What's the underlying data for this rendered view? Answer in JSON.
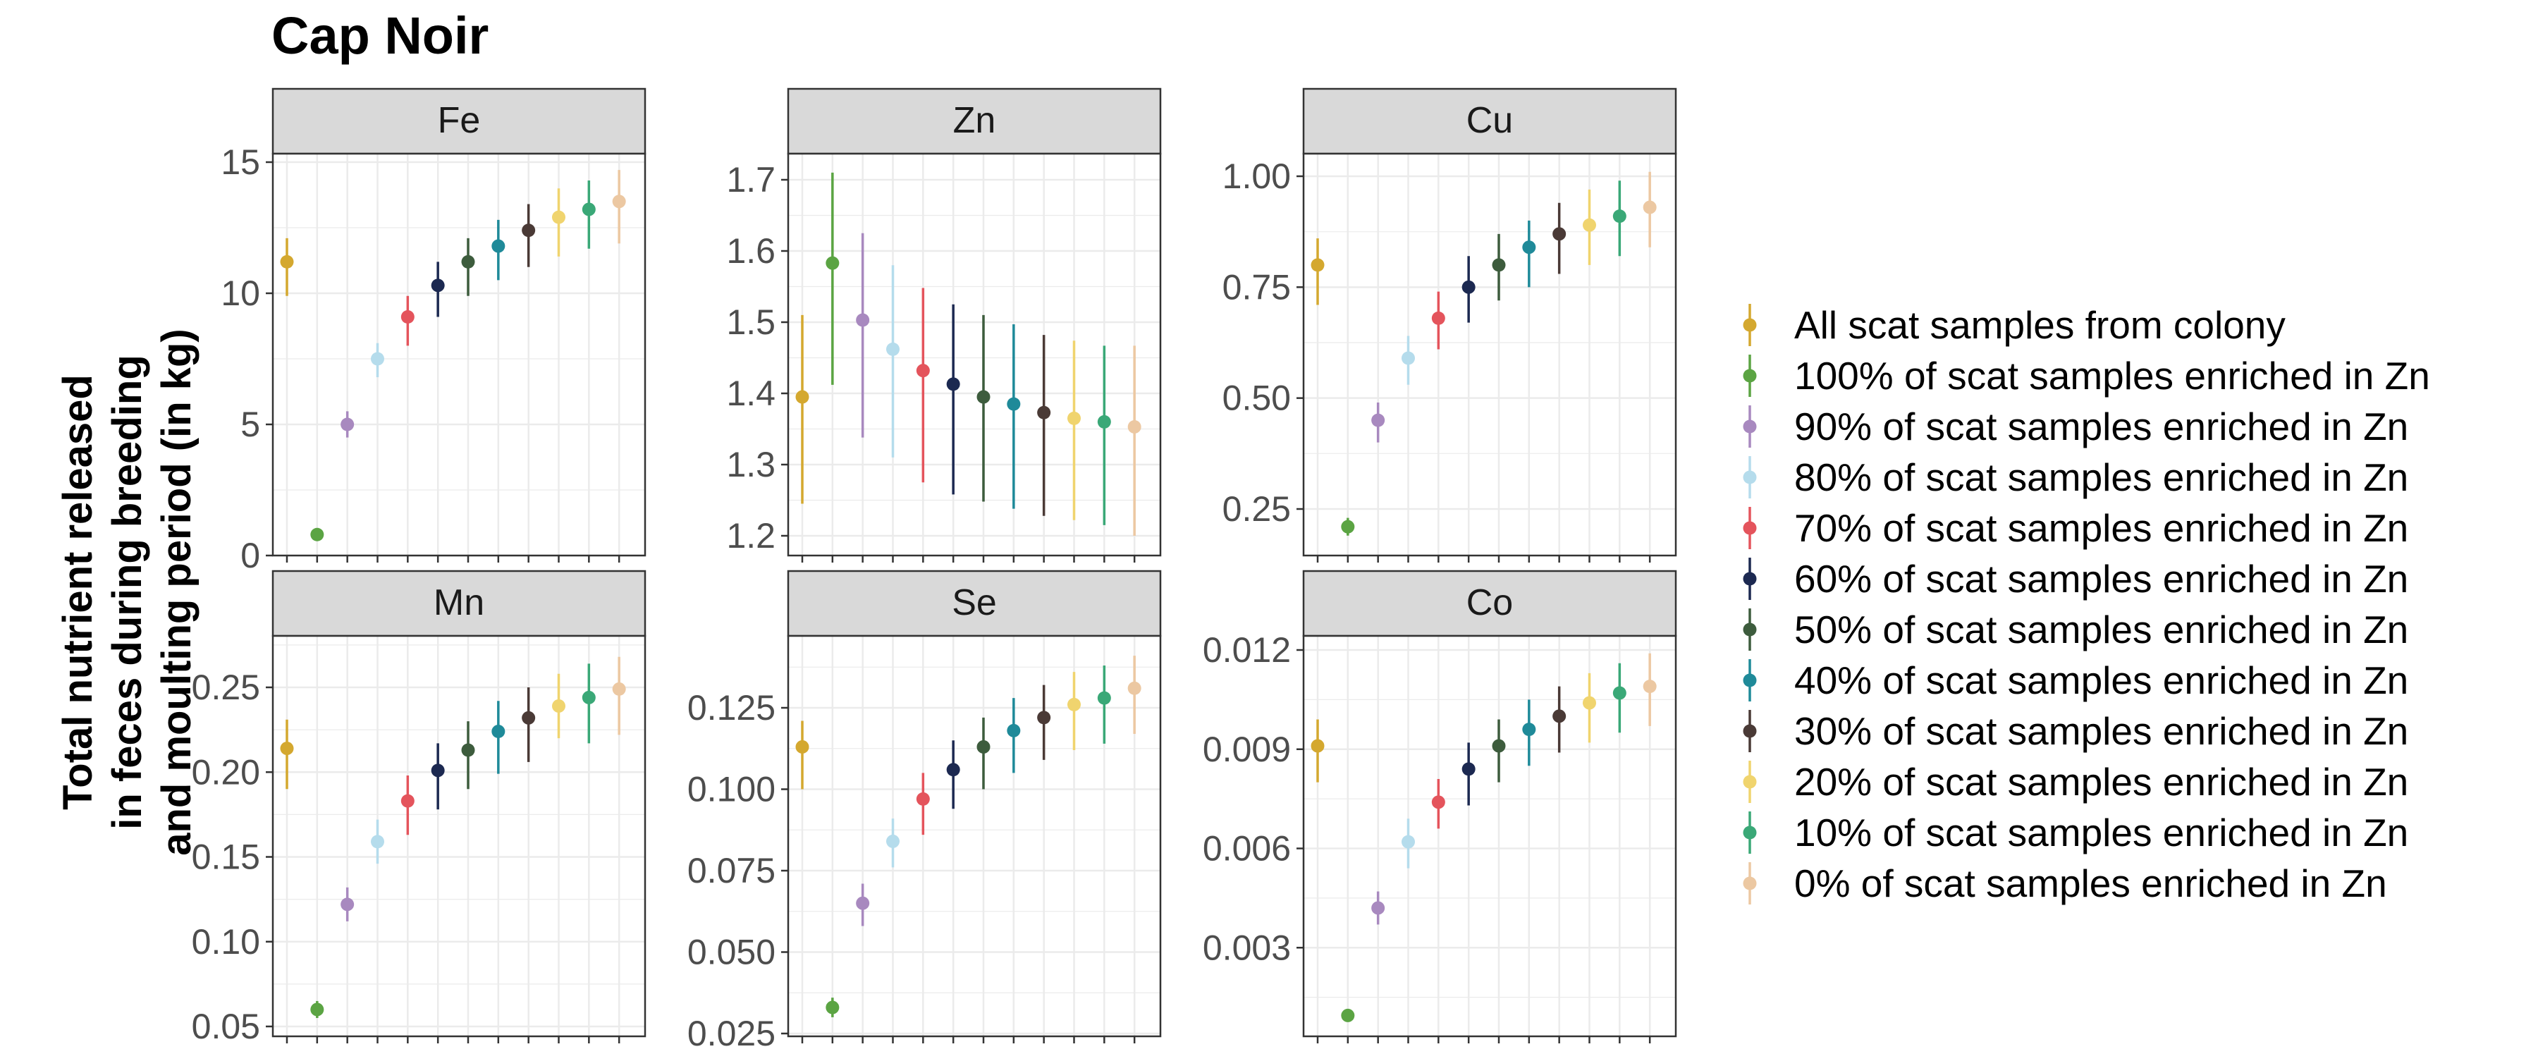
{
  "chart_data": {
    "type": "scatter",
    "title": "Cap Noir",
    "ylabel": "Total nutrient released\nin feces during breeding\nand moulting period (in kg)",
    "xlabel": "",
    "grid": true,
    "legend_position": "right",
    "series": [
      {
        "name": "All scat samples from colony",
        "color": "#D4A82F"
      },
      {
        "name": "100% of scat samples enriched in Zn",
        "color": "#5BA443"
      },
      {
        "name": "90% of scat samples enriched in Zn",
        "color": "#A889BF"
      },
      {
        "name": "80% of scat samples enriched in Zn",
        "color": "#B5DCEC"
      },
      {
        "name": "70% of scat samples enriched in Zn",
        "color": "#E4545C"
      },
      {
        "name": "60% of scat samples enriched in Zn",
        "color": "#1C2951"
      },
      {
        "name": "50% of scat samples enriched in Zn",
        "color": "#3D5C3D"
      },
      {
        "name": "40% of scat samples enriched in Zn",
        "color": "#1F8A99"
      },
      {
        "name": "30% of scat samples enriched in Zn",
        "color": "#4A3A36"
      },
      {
        "name": "20% of scat samples enriched in Zn",
        "color": "#F0D46E"
      },
      {
        "name": "10% of scat samples enriched in Zn",
        "color": "#3AA877"
      },
      {
        "name": "0% of scat samples enriched in Zn",
        "color": "#ECC8A2"
      }
    ],
    "panels": [
      {
        "label": "Fe",
        "ylim": [
          0,
          15
        ],
        "yticks": [
          0,
          5,
          10,
          15
        ],
        "tick_labels": [
          "0",
          "5",
          "10",
          "15"
        ],
        "y": [
          11.2,
          0.8,
          5.0,
          7.5,
          9.1,
          10.3,
          11.2,
          11.8,
          12.4,
          12.9,
          13.2,
          13.5
        ],
        "lower": [
          9.9,
          0.7,
          4.5,
          6.8,
          8.0,
          9.1,
          9.9,
          10.5,
          11.0,
          11.4,
          11.7,
          11.9
        ],
        "upper": [
          12.1,
          0.9,
          5.5,
          8.1,
          9.9,
          11.2,
          12.1,
          12.8,
          13.4,
          14.0,
          14.3,
          14.7
        ]
      },
      {
        "label": "Zn",
        "ylim": [
          1.2,
          1.7
        ],
        "yticks": [
          1.2,
          1.3,
          1.4,
          1.5,
          1.6,
          1.7
        ],
        "tick_labels": [
          "1.2",
          "1.3",
          "1.4",
          "1.5",
          "1.6",
          "1.7"
        ],
        "y": [
          1.395,
          1.583,
          1.503,
          1.462,
          1.432,
          1.413,
          1.395,
          1.385,
          1.373,
          1.365,
          1.36,
          1.353
        ],
        "lower": [
          1.245,
          1.412,
          1.338,
          1.31,
          1.275,
          1.258,
          1.248,
          1.238,
          1.228,
          1.222,
          1.215,
          1.2
        ],
        "upper": [
          1.51,
          1.71,
          1.625,
          1.58,
          1.548,
          1.525,
          1.51,
          1.497,
          1.482,
          1.474,
          1.467,
          1.467
        ]
      },
      {
        "label": "Cu",
        "ylim": [
          0.25,
          1.0
        ],
        "yticks": [
          0.25,
          0.5,
          0.75,
          1.0
        ],
        "tick_labels": [
          "0.25",
          "0.50",
          "0.75",
          "1.00"
        ],
        "y": [
          0.8,
          0.21,
          0.45,
          0.59,
          0.68,
          0.75,
          0.8,
          0.84,
          0.87,
          0.89,
          0.91,
          0.93
        ],
        "lower": [
          0.71,
          0.19,
          0.4,
          0.53,
          0.61,
          0.67,
          0.72,
          0.75,
          0.78,
          0.8,
          0.82,
          0.84
        ],
        "upper": [
          0.86,
          0.23,
          0.49,
          0.64,
          0.74,
          0.82,
          0.87,
          0.9,
          0.94,
          0.97,
          0.99,
          1.01
        ]
      },
      {
        "label": "Mn",
        "ylim": [
          0.05,
          0.25
        ],
        "yticks": [
          0.05,
          0.1,
          0.15,
          0.2,
          0.25
        ],
        "tick_labels": [
          "0.05",
          "0.10",
          "0.15",
          "0.20",
          "0.25"
        ],
        "y": [
          0.214,
          0.06,
          0.122,
          0.159,
          0.183,
          0.201,
          0.213,
          0.224,
          0.232,
          0.239,
          0.244,
          0.249
        ],
        "lower": [
          0.19,
          0.055,
          0.112,
          0.146,
          0.163,
          0.178,
          0.19,
          0.199,
          0.206,
          0.22,
          0.217,
          0.222
        ],
        "upper": [
          0.231,
          0.065,
          0.132,
          0.172,
          0.198,
          0.217,
          0.23,
          0.242,
          0.25,
          0.258,
          0.264,
          0.268
        ]
      },
      {
        "label": "Se",
        "ylim": [
          0.025,
          0.125
        ],
        "yticks": [
          0.025,
          0.05,
          0.075,
          0.1,
          0.125
        ],
        "tick_labels": [
          "0.025",
          "0.050",
          "0.075",
          "0.100",
          "0.125"
        ],
        "y": [
          0.113,
          0.033,
          0.065,
          0.084,
          0.097,
          0.106,
          0.113,
          0.118,
          0.122,
          0.126,
          0.128,
          0.131
        ],
        "lower": [
          0.1,
          0.03,
          0.058,
          0.076,
          0.086,
          0.094,
          0.1,
          0.105,
          0.109,
          0.112,
          0.114,
          0.117
        ],
        "upper": [
          0.121,
          0.036,
          0.071,
          0.091,
          0.105,
          0.115,
          0.122,
          0.128,
          0.132,
          0.136,
          0.138,
          0.141
        ]
      },
      {
        "label": "Co",
        "ylim": [
          0.0,
          0.012
        ],
        "yticks": [
          0.003,
          0.006,
          0.009,
          0.012
        ],
        "tick_labels": [
          "0.003",
          "0.006",
          "0.009",
          "0.012"
        ],
        "y": [
          0.0091,
          0.00095,
          0.0042,
          0.0062,
          0.0074,
          0.0084,
          0.0091,
          0.0096,
          0.01,
          0.0104,
          0.0107,
          0.0109
        ],
        "lower": [
          0.008,
          0.00085,
          0.0037,
          0.0054,
          0.0066,
          0.0073,
          0.008,
          0.0085,
          0.0089,
          0.0092,
          0.0095,
          0.0097
        ],
        "upper": [
          0.0099,
          0.00105,
          0.0047,
          0.0069,
          0.0081,
          0.0092,
          0.0099,
          0.0105,
          0.0109,
          0.0113,
          0.0116,
          0.0119
        ]
      }
    ]
  }
}
